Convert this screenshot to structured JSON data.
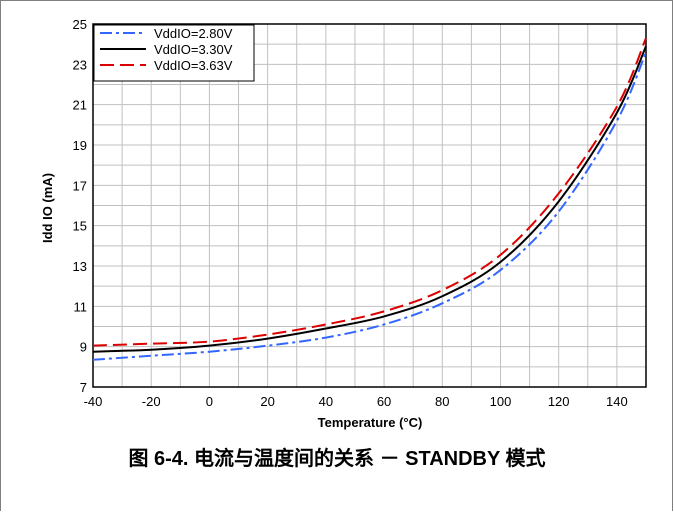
{
  "chart_data": {
    "type": "line",
    "xlabel": "Temperature (°C)",
    "ylabel": "Idd IO (mA)",
    "xlim": [
      -40,
      150
    ],
    "ylim": [
      7,
      25
    ],
    "xticks": [
      -40,
      -20,
      0,
      20,
      40,
      60,
      80,
      100,
      120,
      140
    ],
    "yticks": [
      7,
      9,
      11,
      13,
      15,
      17,
      19,
      21,
      23,
      25
    ],
    "grid": true,
    "legend_position": "top-left",
    "series": [
      {
        "name": "VddIO=2.80V",
        "color": "#3366ff",
        "dash": "dash-dot",
        "x": [
          -40,
          -20,
          0,
          20,
          40,
          60,
          80,
          100,
          120,
          140,
          150
        ],
        "y": [
          8.35,
          8.55,
          8.75,
          9.05,
          9.45,
          10.1,
          11.15,
          12.8,
          15.7,
          20.2,
          23.6
        ]
      },
      {
        "name": "VddIO=3.30V",
        "color": "#000000",
        "dash": "solid",
        "x": [
          -40,
          -20,
          0,
          20,
          40,
          60,
          80,
          100,
          120,
          140,
          150
        ],
        "y": [
          8.75,
          8.85,
          9.05,
          9.4,
          9.9,
          10.5,
          11.5,
          13.2,
          16.2,
          20.6,
          23.9
        ]
      },
      {
        "name": "VddIO=3.63V",
        "color": "#dd0000",
        "dash": "dashed",
        "x": [
          -40,
          -20,
          0,
          20,
          40,
          60,
          80,
          100,
          120,
          140,
          150
        ],
        "y": [
          9.05,
          9.15,
          9.25,
          9.6,
          10.1,
          10.75,
          11.8,
          13.55,
          16.6,
          20.9,
          24.3
        ]
      }
    ]
  },
  "caption": "图 6-4. 电流与温度间的关系 － STANDBY 模式"
}
